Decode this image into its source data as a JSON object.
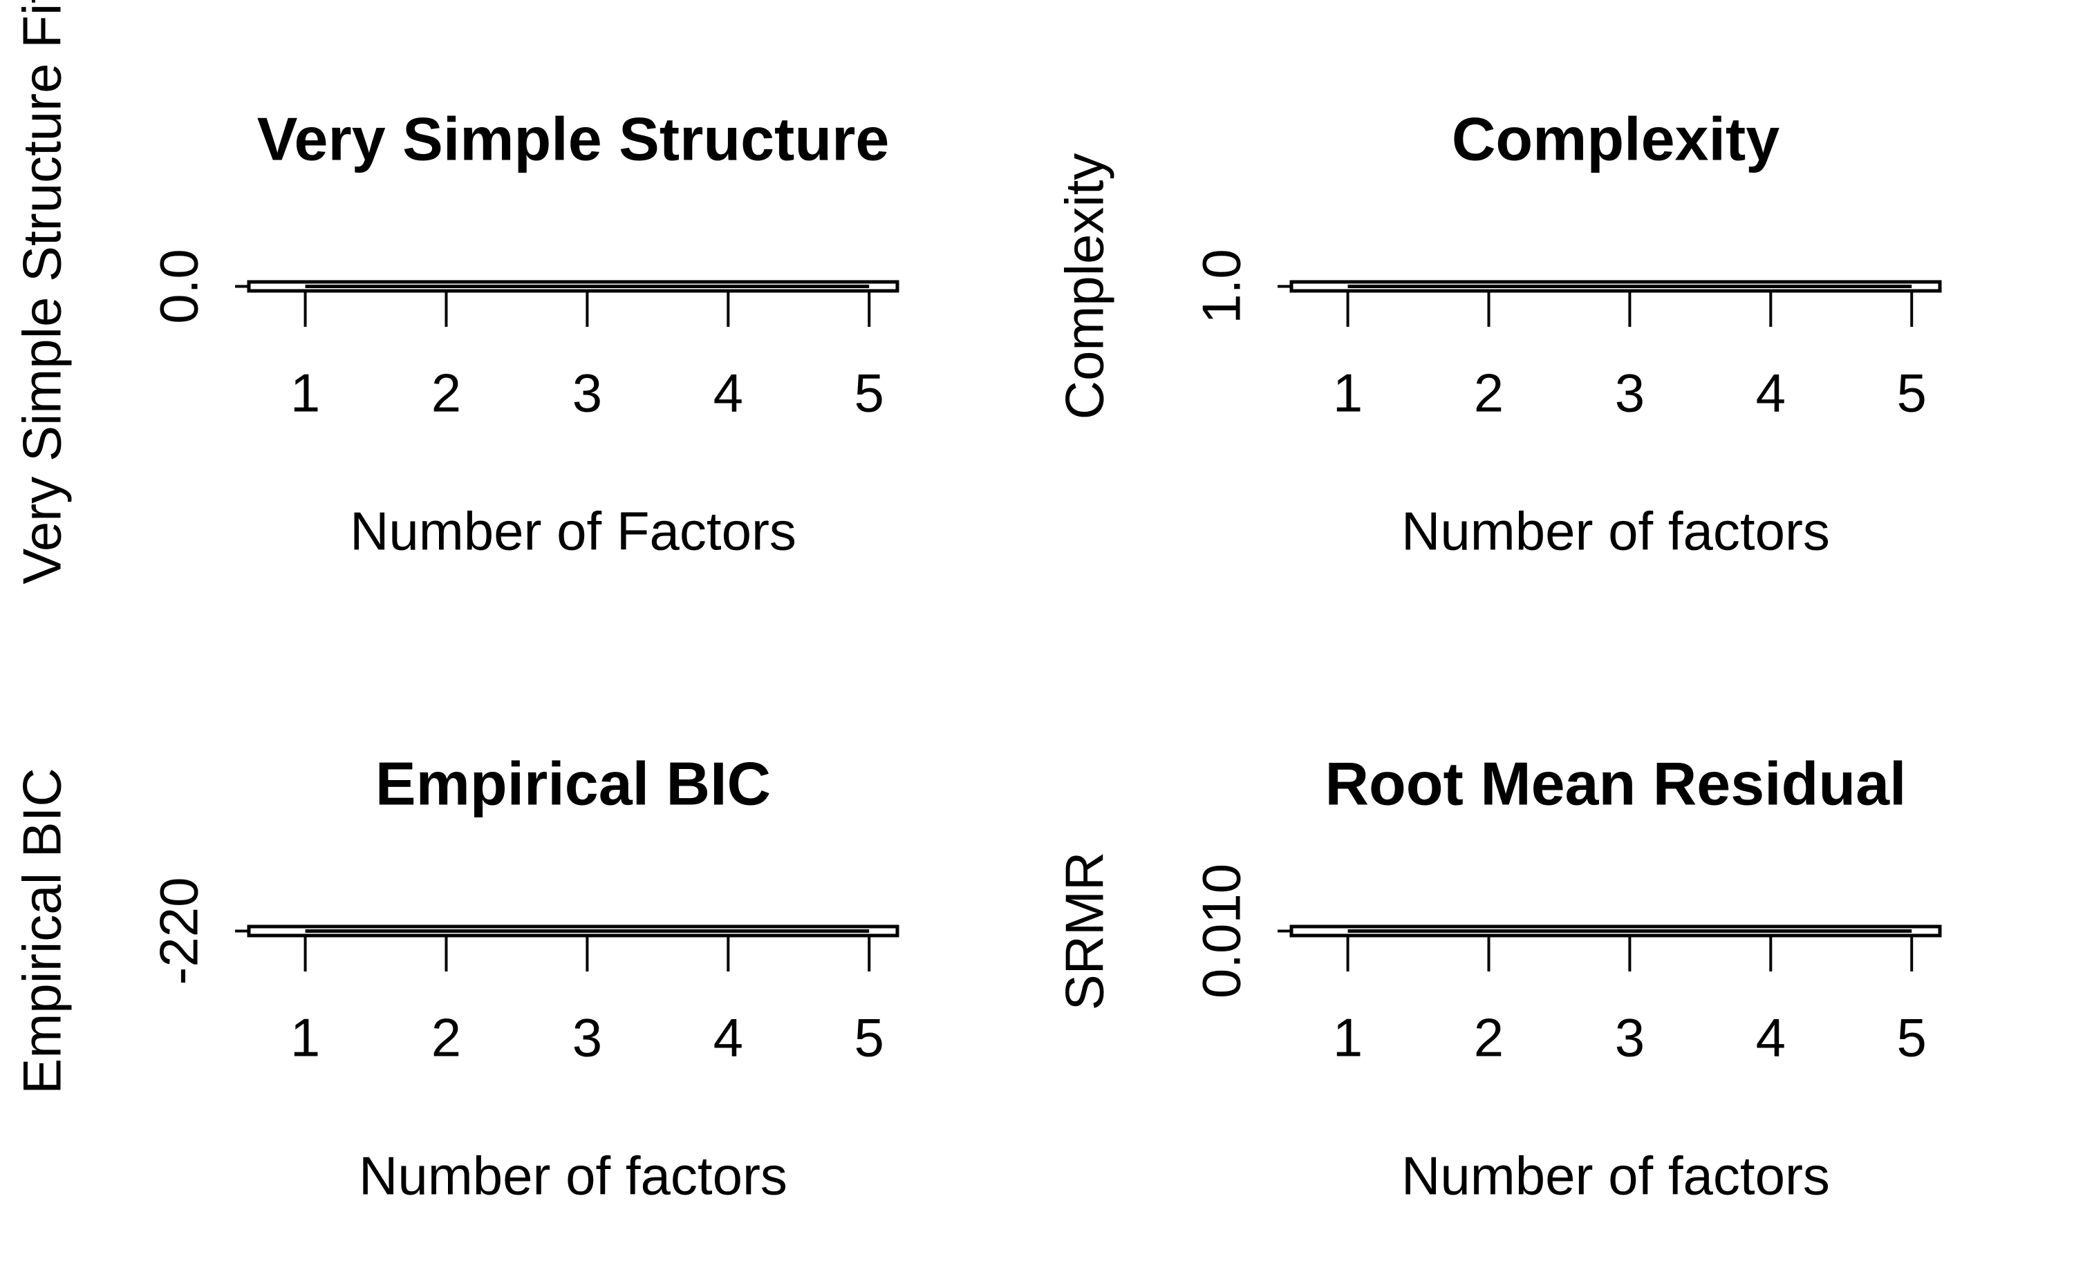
{
  "chart_data": [
    {
      "type": "line",
      "title": "Very Simple Structure",
      "x_label": "Number of Factors",
      "y_label": "Very Simple Structure Fit",
      "x": [
        1,
        2,
        3,
        4,
        5
      ],
      "series": [
        {
          "color": "#000000",
          "values": [
            0,
            0,
            0,
            0,
            0
          ]
        }
      ],
      "xlim": [
        0.6,
        5.2
      ],
      "xticks": [
        1,
        2,
        3,
        4,
        5
      ],
      "ylim": [
        -0.01,
        0.01
      ],
      "yticks": [
        {
          "value": 0,
          "label": "0.0"
        }
      ]
    },
    {
      "type": "line",
      "title": "Complexity",
      "x_label": "Number of factors",
      "y_label": "Complexity",
      "x": [
        1,
        2,
        3,
        4,
        5
      ],
      "series": [
        {
          "color": "#000000",
          "values": [
            1,
            1,
            1,
            1,
            1
          ]
        }
      ],
      "xlim": [
        0.6,
        5.2
      ],
      "xticks": [
        1,
        2,
        3,
        4,
        5
      ],
      "ylim": [
        0.99,
        1.01
      ],
      "yticks": [
        {
          "value": 1,
          "label": "1.0"
        }
      ]
    },
    {
      "type": "line",
      "title": "Empirical BIC",
      "x_label": "Number of factors",
      "y_label": "Empirical BIC",
      "x": [
        1,
        2,
        3,
        4,
        5
      ],
      "series": [
        {
          "color": "#000000",
          "values": [
            -220,
            -220,
            -220,
            -220,
            -220
          ]
        }
      ],
      "xlim": [
        0.6,
        5.2
      ],
      "xticks": [
        1,
        2,
        3,
        4,
        5
      ],
      "ylim": [
        -221,
        -219
      ],
      "yticks": [
        -220
      ]
    },
    {
      "type": "line",
      "title": "Root Mean Residual",
      "x_label": "Number of factors",
      "y_label": "SRMR",
      "x": [
        1,
        2,
        3,
        4,
        5
      ],
      "series": [
        {
          "color": "#000000",
          "values": [
            0.01,
            0.01,
            0.01,
            0.01,
            0.01
          ]
        }
      ],
      "xlim": [
        0.6,
        5.2
      ],
      "xticks": [
        1,
        2,
        3,
        4,
        5
      ],
      "ylim": [
        0.0099,
        0.0101
      ],
      "yticks": [
        {
          "value": 0.01,
          "label": "0.010"
        }
      ]
    }
  ]
}
